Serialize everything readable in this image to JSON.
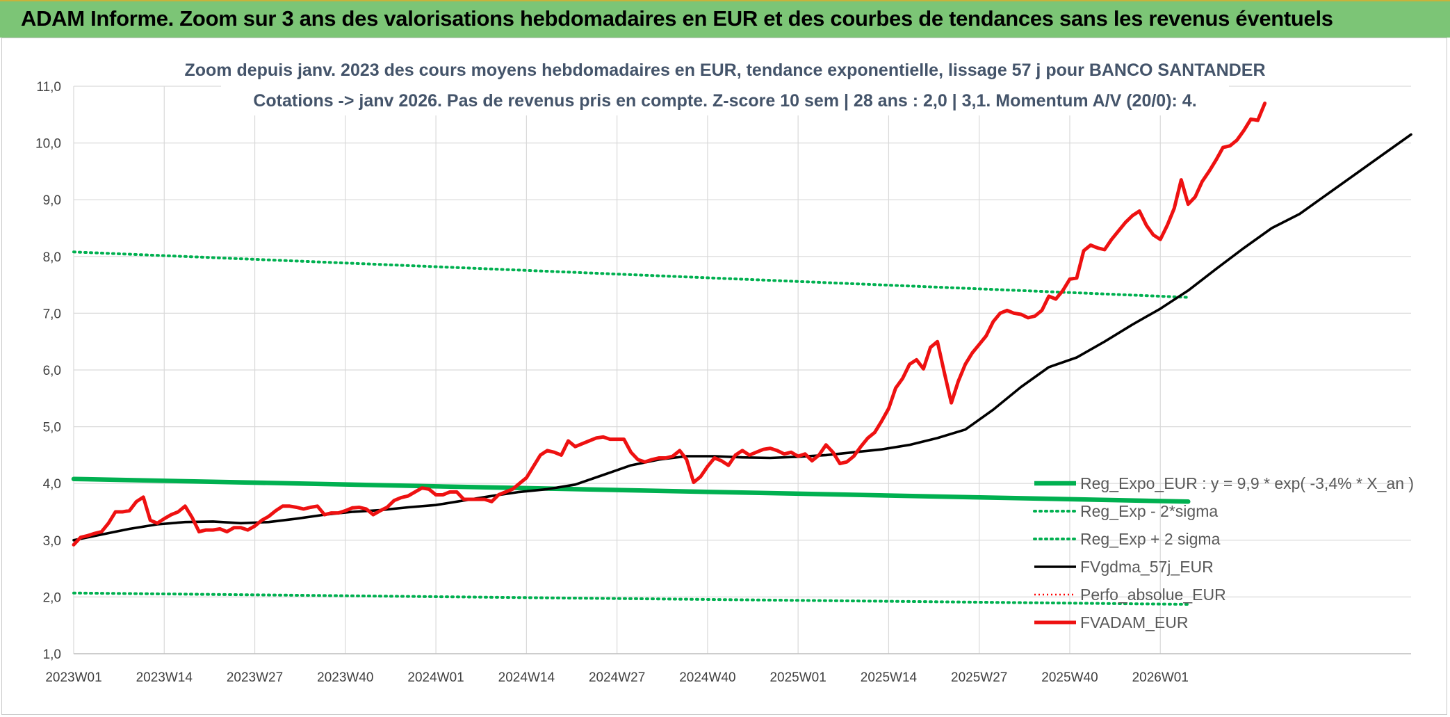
{
  "banner": {
    "title": "ADAM Informe. Zoom sur 3 ans des valorisations hebdomadaires en EUR et des courbes de tendances sans les revenus éventuels"
  },
  "colors": {
    "banner_bg": "#7cc576",
    "reg_expo": "#00b050",
    "fvgdma": "#000000",
    "perfo": "#ff0000",
    "fvadam": "#ee1111",
    "grid": "#d9d9d9"
  },
  "chart_data": {
    "type": "line",
    "title_line1": "Zoom depuis janv. 2023 des cours moyens hebdomadaires en EUR, tendance exponentielle, lissage 57 j pour BANCO SANTANDER",
    "title_line2": "Cotations -> janv 2026. Pas de revenus pris en compte. Z-score 10 sem | 28 ans : 2,0 | 3,1. Momentum A/V (20/0): 4.",
    "ylim": [
      1.0,
      11.0
    ],
    "y_ticks": [
      "1,0",
      "2,0",
      "3,0",
      "4,0",
      "5,0",
      "6,0",
      "7,0",
      "8,0",
      "9,0",
      "10,0",
      "11,0"
    ],
    "x_ticks": [
      "2023W01",
      "2023W14",
      "2023W27",
      "2023W40",
      "2024W01",
      "2024W14",
      "2024W27",
      "2024W40",
      "2025W01",
      "2025W14",
      "2025W27",
      "2025W40",
      "2026W01"
    ],
    "grid": true,
    "legend_position": "right",
    "series": [
      {
        "name": "Reg_Expo_EUR : y = 9,9 * exp( -3,4% *  X_an )",
        "style": "solid-thick",
        "points": [
          [
            0,
            4.08
          ],
          [
            160,
            3.68
          ]
        ]
      },
      {
        "name": "Reg_Exp - 2*sigma",
        "style": "dotted",
        "points": [
          [
            0,
            2.07
          ],
          [
            160,
            1.87
          ]
        ]
      },
      {
        "name": "Reg_Exp + 2 sigma",
        "style": "dotted",
        "points": [
          [
            0,
            8.08
          ],
          [
            160,
            7.28
          ]
        ]
      },
      {
        "name": "FVgdma_57j_EUR",
        "style": "solid",
        "points": [
          [
            0,
            3.0
          ],
          [
            4,
            3.1
          ],
          [
            8,
            3.2
          ],
          [
            12,
            3.28
          ],
          [
            16,
            3.32
          ],
          [
            20,
            3.33
          ],
          [
            24,
            3.3
          ],
          [
            28,
            3.32
          ],
          [
            32,
            3.38
          ],
          [
            36,
            3.45
          ],
          [
            40,
            3.5
          ],
          [
            44,
            3.53
          ],
          [
            48,
            3.58
          ],
          [
            52,
            3.62
          ],
          [
            56,
            3.7
          ],
          [
            60,
            3.78
          ],
          [
            64,
            3.85
          ],
          [
            68,
            3.9
          ],
          [
            72,
            3.98
          ],
          [
            76,
            4.15
          ],
          [
            80,
            4.32
          ],
          [
            84,
            4.42
          ],
          [
            88,
            4.48
          ],
          [
            92,
            4.48
          ],
          [
            96,
            4.46
          ],
          [
            100,
            4.45
          ],
          [
            104,
            4.47
          ],
          [
            108,
            4.5
          ],
          [
            112,
            4.55
          ],
          [
            116,
            4.6
          ],
          [
            120,
            4.68
          ],
          [
            124,
            4.8
          ],
          [
            128,
            4.95
          ],
          [
            132,
            5.3
          ],
          [
            136,
            5.7
          ],
          [
            140,
            6.05
          ],
          [
            144,
            6.22
          ],
          [
            148,
            6.5
          ],
          [
            152,
            6.8
          ],
          [
            156,
            7.08
          ],
          [
            160,
            7.4
          ],
          [
            164,
            7.78
          ],
          [
            168,
            8.15
          ],
          [
            172,
            8.5
          ],
          [
            176,
            8.75
          ],
          [
            180,
            9.1
          ],
          [
            184,
            9.45
          ],
          [
            188,
            9.8
          ],
          [
            192,
            10.15
          ]
        ]
      },
      {
        "name": "Perfo_absolue_EUR",
        "style": "dotted-thin",
        "points": []
      },
      {
        "name": "FVADAM_EUR",
        "style": "solid-thick",
        "points": [
          [
            0,
            2.92
          ],
          [
            1,
            3.05
          ],
          [
            2,
            3.08
          ],
          [
            3,
            3.12
          ],
          [
            4,
            3.15
          ],
          [
            5,
            3.3
          ],
          [
            6,
            3.5
          ],
          [
            7,
            3.5
          ],
          [
            8,
            3.52
          ],
          [
            9,
            3.68
          ],
          [
            10,
            3.76
          ],
          [
            11,
            3.35
          ],
          [
            12,
            3.3
          ],
          [
            13,
            3.38
          ],
          [
            14,
            3.45
          ],
          [
            15,
            3.5
          ],
          [
            16,
            3.6
          ],
          [
            17,
            3.4
          ],
          [
            18,
            3.15
          ],
          [
            19,
            3.18
          ],
          [
            20,
            3.18
          ],
          [
            21,
            3.2
          ],
          [
            22,
            3.15
          ],
          [
            23,
            3.22
          ],
          [
            24,
            3.22
          ],
          [
            25,
            3.18
          ],
          [
            26,
            3.25
          ],
          [
            27,
            3.35
          ],
          [
            28,
            3.42
          ],
          [
            29,
            3.52
          ],
          [
            30,
            3.6
          ],
          [
            31,
            3.6
          ],
          [
            32,
            3.58
          ],
          [
            33,
            3.55
          ],
          [
            34,
            3.58
          ],
          [
            35,
            3.6
          ],
          [
            36,
            3.45
          ],
          [
            37,
            3.48
          ],
          [
            38,
            3.48
          ],
          [
            39,
            3.52
          ],
          [
            40,
            3.57
          ],
          [
            41,
            3.58
          ],
          [
            42,
            3.55
          ],
          [
            43,
            3.45
          ],
          [
            44,
            3.52
          ],
          [
            45,
            3.58
          ],
          [
            46,
            3.7
          ],
          [
            47,
            3.75
          ],
          [
            48,
            3.78
          ],
          [
            49,
            3.85
          ],
          [
            50,
            3.92
          ],
          [
            51,
            3.9
          ],
          [
            52,
            3.8
          ],
          [
            53,
            3.8
          ],
          [
            54,
            3.85
          ],
          [
            55,
            3.85
          ],
          [
            56,
            3.72
          ],
          [
            57,
            3.72
          ],
          [
            58,
            3.72
          ],
          [
            59,
            3.72
          ],
          [
            60,
            3.68
          ],
          [
            61,
            3.8
          ],
          [
            62,
            3.85
          ],
          [
            63,
            3.9
          ],
          [
            64,
            4.0
          ],
          [
            65,
            4.1
          ],
          [
            66,
            4.3
          ],
          [
            67,
            4.5
          ],
          [
            68,
            4.58
          ],
          [
            69,
            4.55
          ],
          [
            70,
            4.5
          ],
          [
            71,
            4.75
          ],
          [
            72,
            4.65
          ],
          [
            73,
            4.7
          ],
          [
            74,
            4.75
          ],
          [
            75,
            4.8
          ],
          [
            76,
            4.82
          ],
          [
            77,
            4.78
          ],
          [
            78,
            4.78
          ],
          [
            79,
            4.78
          ],
          [
            80,
            4.55
          ],
          [
            81,
            4.42
          ],
          [
            82,
            4.38
          ],
          [
            83,
            4.42
          ],
          [
            84,
            4.45
          ],
          [
            85,
            4.45
          ],
          [
            86,
            4.48
          ],
          [
            87,
            4.58
          ],
          [
            88,
            4.42
          ],
          [
            89,
            4.02
          ],
          [
            90,
            4.12
          ],
          [
            91,
            4.3
          ],
          [
            92,
            4.45
          ],
          [
            93,
            4.4
          ],
          [
            94,
            4.32
          ],
          [
            95,
            4.5
          ],
          [
            96,
            4.58
          ],
          [
            97,
            4.5
          ],
          [
            98,
            4.55
          ],
          [
            99,
            4.6
          ],
          [
            100,
            4.62
          ],
          [
            101,
            4.58
          ],
          [
            102,
            4.52
          ],
          [
            103,
            4.55
          ],
          [
            104,
            4.48
          ],
          [
            105,
            4.52
          ],
          [
            106,
            4.4
          ],
          [
            107,
            4.5
          ],
          [
            108,
            4.68
          ],
          [
            109,
            4.55
          ],
          [
            110,
            4.35
          ],
          [
            111,
            4.38
          ],
          [
            112,
            4.48
          ],
          [
            113,
            4.65
          ],
          [
            114,
            4.8
          ],
          [
            115,
            4.9
          ],
          [
            116,
            5.1
          ],
          [
            117,
            5.32
          ],
          [
            118,
            5.68
          ],
          [
            119,
            5.85
          ],
          [
            120,
            6.1
          ],
          [
            121,
            6.18
          ],
          [
            122,
            6.02
          ],
          [
            123,
            6.4
          ],
          [
            124,
            6.5
          ],
          [
            125,
            5.95
          ],
          [
            126,
            5.42
          ],
          [
            127,
            5.8
          ],
          [
            128,
            6.1
          ],
          [
            129,
            6.3
          ],
          [
            130,
            6.45
          ],
          [
            131,
            6.6
          ],
          [
            132,
            6.85
          ],
          [
            133,
            7.0
          ],
          [
            134,
            7.05
          ],
          [
            135,
            7.0
          ],
          [
            136,
            6.98
          ],
          [
            137,
            6.92
          ],
          [
            138,
            6.95
          ],
          [
            139,
            7.05
          ],
          [
            140,
            7.3
          ],
          [
            141,
            7.25
          ],
          [
            142,
            7.4
          ],
          [
            143,
            7.6
          ],
          [
            144,
            7.62
          ],
          [
            145,
            8.1
          ],
          [
            146,
            8.2
          ],
          [
            147,
            8.15
          ],
          [
            148,
            8.12
          ],
          [
            149,
            8.3
          ],
          [
            150,
            8.45
          ],
          [
            151,
            8.6
          ],
          [
            152,
            8.72
          ],
          [
            153,
            8.8
          ],
          [
            154,
            8.55
          ],
          [
            155,
            8.38
          ],
          [
            156,
            8.3
          ],
          [
            157,
            8.55
          ],
          [
            158,
            8.85
          ],
          [
            159,
            9.35
          ],
          [
            160,
            8.92
          ],
          [
            161,
            9.05
          ],
          [
            162,
            9.32
          ],
          [
            163,
            9.5
          ],
          [
            164,
            9.7
          ],
          [
            165,
            9.92
          ],
          [
            166,
            9.95
          ],
          [
            167,
            10.05
          ],
          [
            168,
            10.22
          ],
          [
            169,
            10.42
          ],
          [
            170,
            10.4
          ],
          [
            171,
            10.7
          ]
        ]
      }
    ]
  }
}
